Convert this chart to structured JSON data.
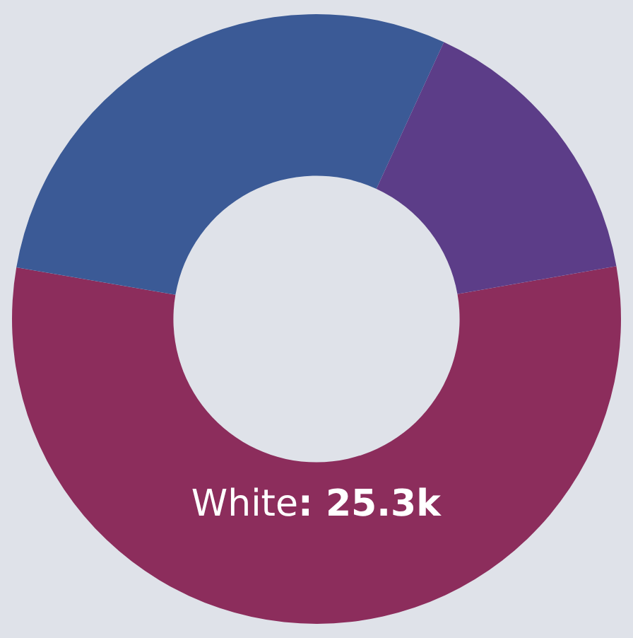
{
  "chart_data": {
    "type": "donut",
    "categories": [
      "White",
      null,
      null
    ],
    "values": [
      25.3,
      13.3,
      7.0
    ],
    "value_labels": [
      ": 25.3k",
      null,
      null
    ],
    "colors": [
      "#8c2d5c",
      "#3b5a96",
      "#5c3d88"
    ],
    "legend": false
  }
}
